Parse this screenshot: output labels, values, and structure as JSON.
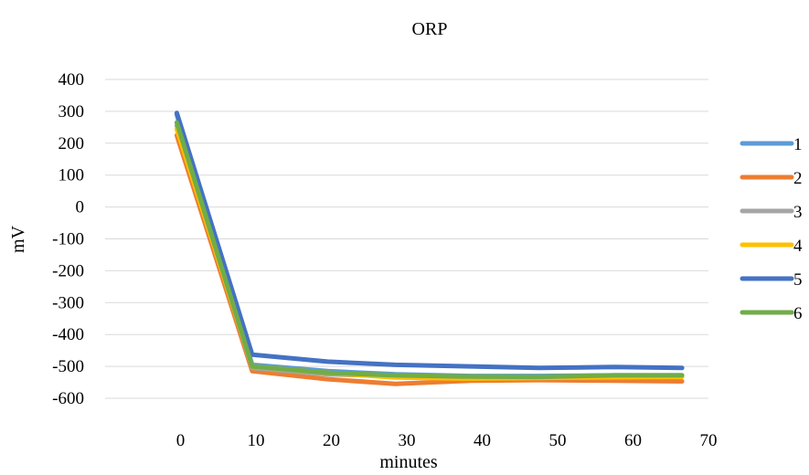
{
  "chart_data": {
    "type": "line",
    "title": "ORP",
    "xlabel": "minutes",
    "ylabel": "mV",
    "xlim": [
      -10,
      70
    ],
    "ylim": [
      -600,
      400
    ],
    "x_ticks": [
      0,
      10,
      20,
      30,
      40,
      50,
      60,
      70
    ],
    "y_ticks": [
      400,
      300,
      200,
      100,
      0,
      -100,
      -200,
      -300,
      -400,
      -500,
      -600
    ],
    "grid": true,
    "legend_position": "right",
    "series": [
      {
        "name": "1",
        "color": "#5B9BD5",
        "points": [
          [
            -0.5,
            290
          ],
          [
            9.5,
            -495
          ],
          [
            19.5,
            -515
          ],
          [
            28.5,
            -525
          ],
          [
            38.5,
            -530
          ],
          [
            47.5,
            -530
          ],
          [
            57.5,
            -528
          ],
          [
            66.5,
            -528
          ]
        ]
      },
      {
        "name": "2",
        "color": "#ED7D31",
        "points": [
          [
            -0.5,
            225
          ],
          [
            9.5,
            -515
          ],
          [
            19.5,
            -540
          ],
          [
            28.5,
            -555
          ],
          [
            38.5,
            -545
          ],
          [
            47.5,
            -543
          ],
          [
            57.5,
            -545
          ],
          [
            66.5,
            -547
          ]
        ]
      },
      {
        "name": "3",
        "color": "#A5A5A5",
        "points": [
          [
            -0.5,
            255
          ],
          [
            9.5,
            -505
          ],
          [
            19.5,
            -525
          ],
          [
            28.5,
            -530
          ],
          [
            38.5,
            -535
          ],
          [
            47.5,
            -535
          ],
          [
            57.5,
            -532
          ],
          [
            66.5,
            -530
          ]
        ]
      },
      {
        "name": "4",
        "color": "#FFC000",
        "points": [
          [
            -0.5,
            245
          ],
          [
            9.5,
            -500
          ],
          [
            19.5,
            -520
          ],
          [
            28.5,
            -535
          ],
          [
            38.5,
            -538
          ],
          [
            47.5,
            -536
          ],
          [
            57.5,
            -534
          ],
          [
            66.5,
            -533
          ]
        ]
      },
      {
        "name": "5",
        "color": "#4472C4",
        "points": [
          [
            -0.5,
            295
          ],
          [
            9.5,
            -463
          ],
          [
            19.5,
            -485
          ],
          [
            28.5,
            -495
          ],
          [
            38.5,
            -500
          ],
          [
            47.5,
            -505
          ],
          [
            57.5,
            -502
          ],
          [
            66.5,
            -505
          ]
        ]
      },
      {
        "name": "6",
        "color": "#70AD47",
        "points": [
          [
            -0.5,
            265
          ],
          [
            9.5,
            -500
          ],
          [
            19.5,
            -520
          ],
          [
            28.5,
            -528
          ],
          [
            38.5,
            -532
          ],
          [
            47.5,
            -533
          ],
          [
            57.5,
            -528
          ],
          [
            66.5,
            -528
          ]
        ]
      }
    ]
  }
}
